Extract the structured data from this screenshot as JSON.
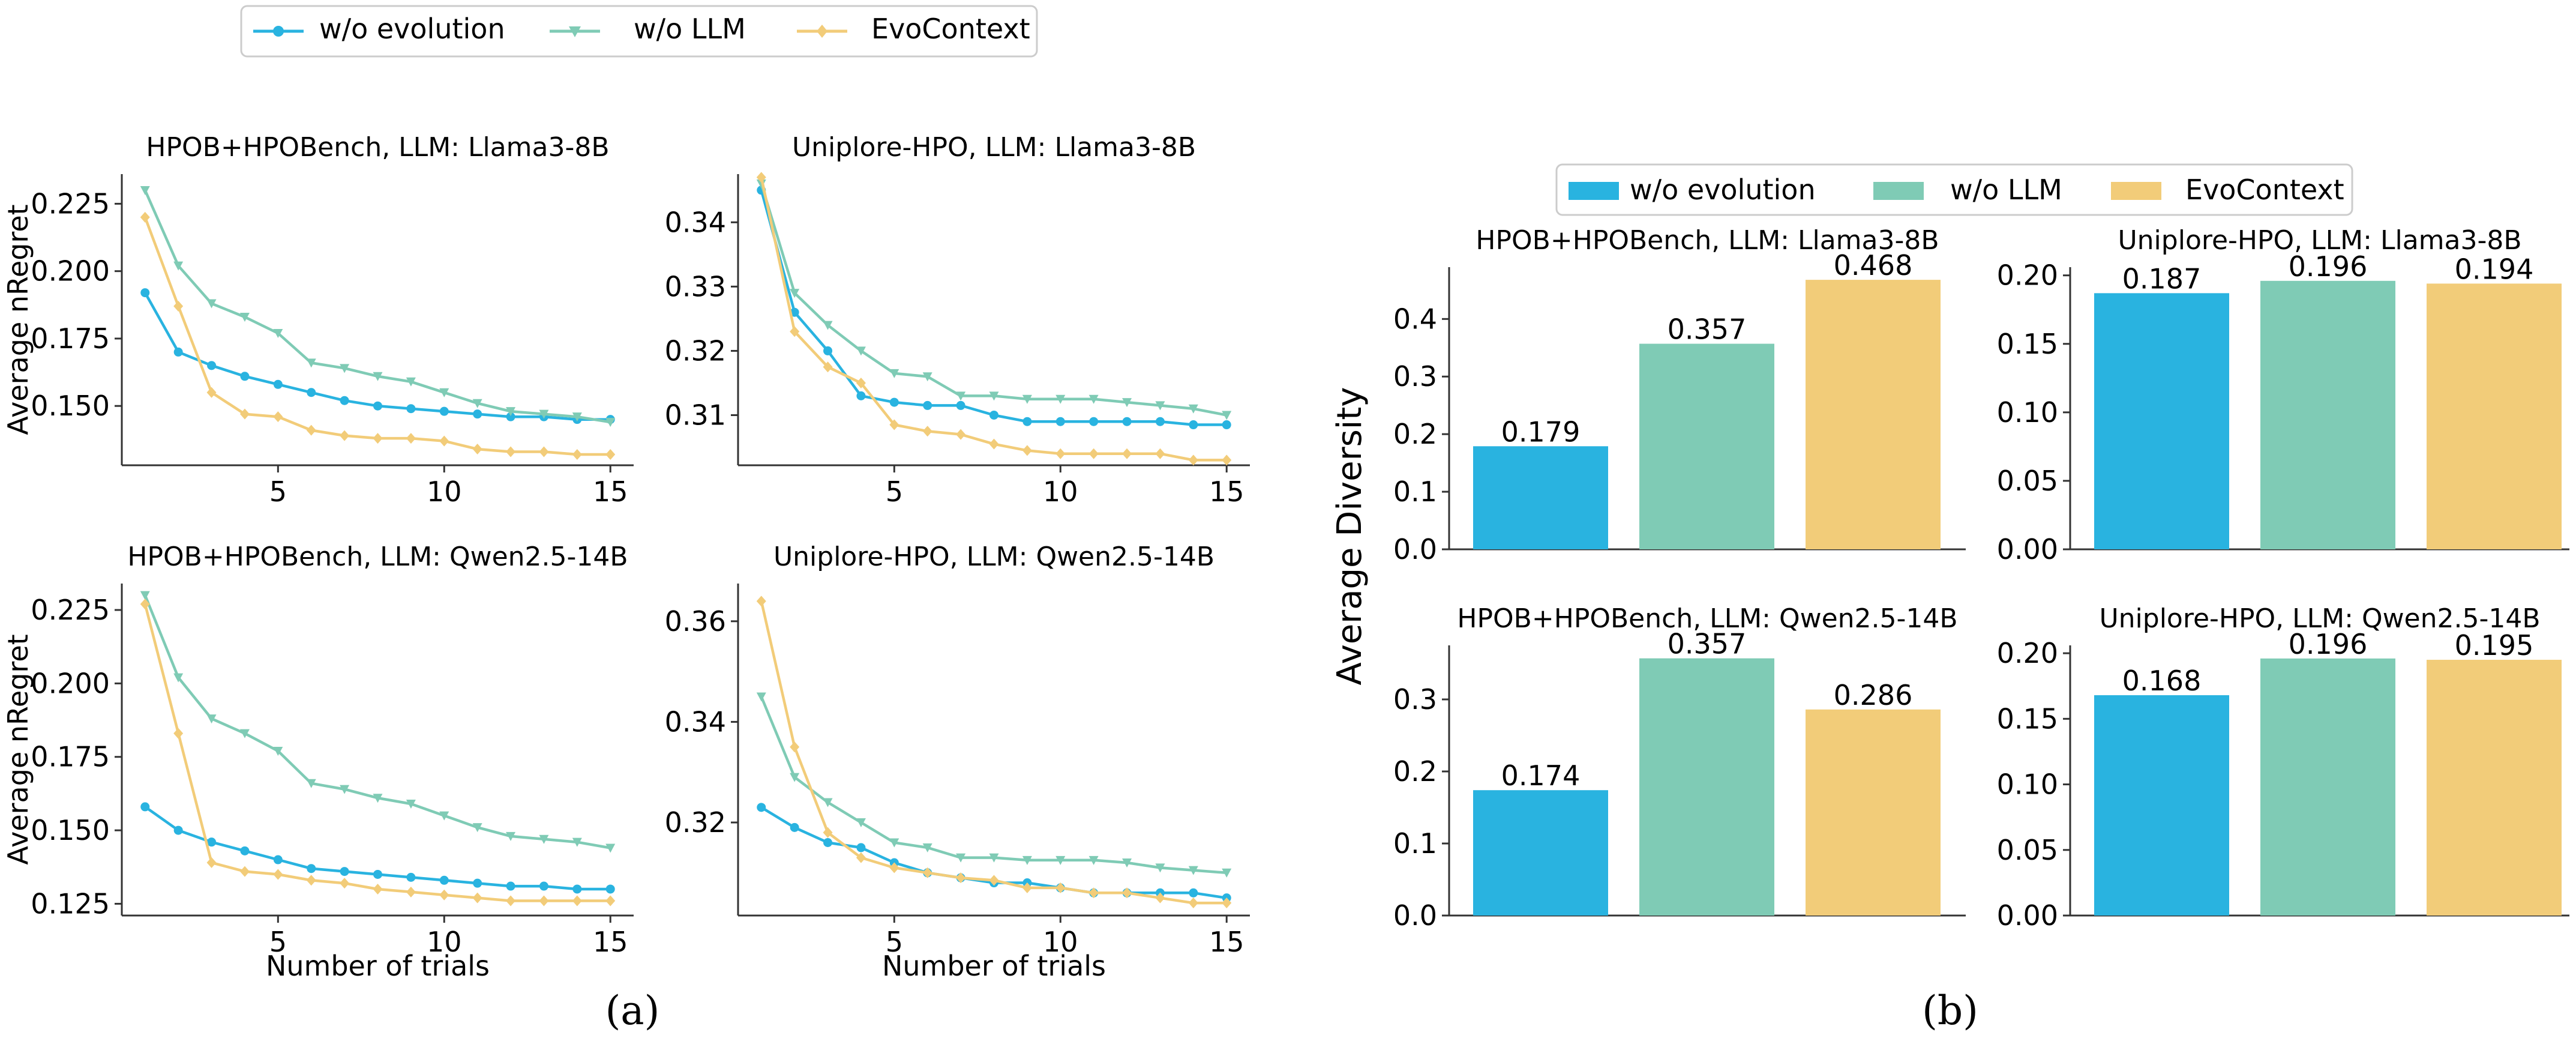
{
  "colors": {
    "evo": "#29b3e0",
    "llm": "#7fcbb5",
    "ctx": "#f2cc79"
  },
  "legend_a": [
    "w/o evolution",
    "w/o LLM",
    "EvoContext"
  ],
  "legend_b": [
    "w/o evolution",
    "w/o LLM",
    "EvoContext"
  ],
  "captions": {
    "a": "(a)",
    "b": "(b)"
  },
  "chart_data": [
    {
      "type": "line",
      "title": "HPOB+HPOBench, LLM: Llama3-8B",
      "xlabel": "",
      "ylabel": "Average nRegret",
      "xlim": [
        0.3,
        15.7
      ],
      "ylim": [
        0.128,
        0.236
      ],
      "xticks": [
        5,
        10,
        15
      ],
      "xtick_labels": [
        "5",
        "10",
        "15"
      ],
      "yticks": [
        0.15,
        0.175,
        0.2,
        0.225
      ],
      "ytick_labels": [
        "0.150",
        "0.175",
        "0.200",
        "0.225"
      ],
      "x": [
        1,
        2,
        3,
        4,
        5,
        6,
        7,
        8,
        9,
        10,
        11,
        12,
        13,
        14,
        15
      ],
      "series": [
        {
          "name": "w/o evolution",
          "color": "evo",
          "marker": "circle",
          "values": [
            0.192,
            0.17,
            0.165,
            0.161,
            0.158,
            0.155,
            0.152,
            0.15,
            0.149,
            0.148,
            0.147,
            0.146,
            0.146,
            0.145,
            0.145
          ]
        },
        {
          "name": "w/o LLM",
          "color": "llm",
          "marker": "triangle",
          "values": [
            0.23,
            0.202,
            0.188,
            0.183,
            0.177,
            0.166,
            0.164,
            0.161,
            0.159,
            0.155,
            0.151,
            0.148,
            0.147,
            0.146,
            0.144
          ]
        },
        {
          "name": "EvoContext",
          "color": "ctx",
          "marker": "diamond",
          "values": [
            0.22,
            0.187,
            0.155,
            0.147,
            0.146,
            0.141,
            0.139,
            0.138,
            0.138,
            0.137,
            0.134,
            0.133,
            0.133,
            0.132,
            0.132
          ]
        }
      ]
    },
    {
      "type": "line",
      "title": "Uniplore-HPO, LLM: Llama3-8B",
      "xlabel": "",
      "ylabel": "",
      "xlim": [
        0.3,
        15.7
      ],
      "ylim": [
        0.3022,
        0.3475
      ],
      "xticks": [
        5,
        10,
        15
      ],
      "xtick_labels": [
        "5",
        "10",
        "15"
      ],
      "yticks": [
        0.31,
        0.32,
        0.33,
        0.34
      ],
      "ytick_labels": [
        "0.31",
        "0.32",
        "0.33",
        "0.34"
      ],
      "x": [
        1,
        2,
        3,
        4,
        5,
        6,
        7,
        8,
        9,
        10,
        11,
        12,
        13,
        14,
        15
      ],
      "series": [
        {
          "name": "w/o evolution",
          "color": "evo",
          "marker": "circle",
          "values": [
            0.345,
            0.326,
            0.32,
            0.313,
            0.312,
            0.3115,
            0.3115,
            0.31,
            0.309,
            0.309,
            0.309,
            0.309,
            0.309,
            0.3085,
            0.3085
          ]
        },
        {
          "name": "w/o LLM",
          "color": "llm",
          "marker": "triangle",
          "values": [
            0.346,
            0.329,
            0.324,
            0.32,
            0.3165,
            0.316,
            0.313,
            0.313,
            0.3125,
            0.3125,
            0.3125,
            0.312,
            0.3115,
            0.311,
            0.31
          ]
        },
        {
          "name": "EvoContext",
          "color": "ctx",
          "marker": "diamond",
          "values": [
            0.347,
            0.323,
            0.3175,
            0.315,
            0.3085,
            0.3075,
            0.307,
            0.3055,
            0.3045,
            0.304,
            0.304,
            0.304,
            0.304,
            0.303,
            0.303
          ]
        }
      ]
    },
    {
      "type": "line",
      "title": "HPOB+HPOBench, LLM: Qwen2.5-14B",
      "xlabel": "Number of trials",
      "ylabel": "Average nRegret",
      "xlim": [
        0.3,
        15.7
      ],
      "ylim": [
        0.121,
        0.234
      ],
      "xticks": [
        5,
        10,
        15
      ],
      "xtick_labels": [
        "5",
        "10",
        "15"
      ],
      "yticks": [
        0.125,
        0.15,
        0.175,
        0.2,
        0.225
      ],
      "ytick_labels": [
        "0.125",
        "0.150",
        "0.175",
        "0.200",
        "0.225"
      ],
      "x": [
        1,
        2,
        3,
        4,
        5,
        6,
        7,
        8,
        9,
        10,
        11,
        12,
        13,
        14,
        15
      ],
      "series": [
        {
          "name": "w/o evolution",
          "color": "evo",
          "marker": "circle",
          "values": [
            0.158,
            0.15,
            0.146,
            0.143,
            0.14,
            0.137,
            0.136,
            0.135,
            0.134,
            0.133,
            0.132,
            0.131,
            0.131,
            0.13,
            0.13
          ]
        },
        {
          "name": "w/o LLM",
          "color": "llm",
          "marker": "triangle",
          "values": [
            0.23,
            0.202,
            0.188,
            0.183,
            0.177,
            0.166,
            0.164,
            0.161,
            0.159,
            0.155,
            0.151,
            0.148,
            0.147,
            0.146,
            0.144
          ]
        },
        {
          "name": "EvoContext",
          "color": "ctx",
          "marker": "diamond",
          "values": [
            0.227,
            0.183,
            0.139,
            0.136,
            0.135,
            0.133,
            0.132,
            0.13,
            0.129,
            0.128,
            0.127,
            0.126,
            0.126,
            0.126,
            0.126
          ]
        }
      ]
    },
    {
      "type": "line",
      "title": "Uniplore-HPO, LLM: Qwen2.5-14B",
      "xlabel": "Number of trials",
      "ylabel": "",
      "xlim": [
        0.3,
        15.7
      ],
      "ylim": [
        0.3015,
        0.3675
      ],
      "xticks": [
        5,
        10,
        15
      ],
      "xtick_labels": [
        "5",
        "10",
        "15"
      ],
      "yticks": [
        0.32,
        0.34,
        0.36
      ],
      "ytick_labels": [
        "0.32",
        "0.34",
        "0.36"
      ],
      "x": [
        1,
        2,
        3,
        4,
        5,
        6,
        7,
        8,
        9,
        10,
        11,
        12,
        13,
        14,
        15
      ],
      "series": [
        {
          "name": "w/o evolution",
          "color": "evo",
          "marker": "circle",
          "values": [
            0.323,
            0.319,
            0.316,
            0.315,
            0.312,
            0.31,
            0.309,
            0.308,
            0.308,
            0.307,
            0.306,
            0.306,
            0.306,
            0.306,
            0.305
          ]
        },
        {
          "name": "w/o LLM",
          "color": "llm",
          "marker": "triangle",
          "values": [
            0.345,
            0.329,
            0.324,
            0.32,
            0.316,
            0.315,
            0.313,
            0.313,
            0.3125,
            0.3125,
            0.3125,
            0.312,
            0.311,
            0.3105,
            0.31
          ]
        },
        {
          "name": "EvoContext",
          "color": "ctx",
          "marker": "diamond",
          "values": [
            0.364,
            0.335,
            0.318,
            0.313,
            0.311,
            0.31,
            0.309,
            0.3085,
            0.307,
            0.307,
            0.306,
            0.306,
            0.305,
            0.304,
            0.304
          ]
        }
      ]
    },
    {
      "type": "bar",
      "title": "HPOB+HPOBench, LLM: Llama3-8B",
      "ylabel": "Average Diversity",
      "categories": [
        "w/o evolution",
        "w/o LLM",
        "EvoContext"
      ],
      "values": [
        0.179,
        0.357,
        0.468
      ],
      "labels": [
        "0.179",
        "0.357",
        "0.468"
      ],
      "ylim": [
        0,
        0.49
      ],
      "yticks": [
        0,
        0.1,
        0.2,
        0.3,
        0.4
      ],
      "ytick_labels": [
        "0.0",
        "0.1",
        "0.2",
        "0.3",
        "0.4"
      ]
    },
    {
      "type": "bar",
      "title": "Uniplore-HPO, LLM: Llama3-8B",
      "ylabel": "",
      "categories": [
        "w/o evolution",
        "w/o LLM",
        "EvoContext"
      ],
      "values": [
        0.187,
        0.196,
        0.194
      ],
      "labels": [
        "0.187",
        "0.196",
        "0.194"
      ],
      "ylim": [
        0,
        0.206
      ],
      "yticks": [
        0,
        0.05,
        0.1,
        0.15,
        0.2
      ],
      "ytick_labels": [
        "0.00",
        "0.05",
        "0.10",
        "0.15",
        "0.20"
      ]
    },
    {
      "type": "bar",
      "title": "HPOB+HPOBench, LLM: Qwen2.5-14B",
      "ylabel": "",
      "categories": [
        "w/o evolution",
        "w/o LLM",
        "EvoContext"
      ],
      "values": [
        0.174,
        0.357,
        0.286
      ],
      "labels": [
        "0.174",
        "0.357",
        "0.286"
      ],
      "ylim": [
        0,
        0.375
      ],
      "yticks": [
        0,
        0.1,
        0.2,
        0.3
      ],
      "ytick_labels": [
        "0.0",
        "0.1",
        "0.2",
        "0.3"
      ]
    },
    {
      "type": "bar",
      "title": "Uniplore-HPO, LLM: Qwen2.5-14B",
      "ylabel": "",
      "categories": [
        "w/o evolution",
        "w/o LLM",
        "EvoContext"
      ],
      "values": [
        0.168,
        0.196,
        0.195
      ],
      "labels": [
        "0.168",
        "0.196",
        "0.195"
      ],
      "ylim": [
        0,
        0.206
      ],
      "yticks": [
        0,
        0.05,
        0.1,
        0.15,
        0.2
      ],
      "ytick_labels": [
        "0.00",
        "0.05",
        "0.10",
        "0.15",
        "0.20"
      ]
    }
  ]
}
